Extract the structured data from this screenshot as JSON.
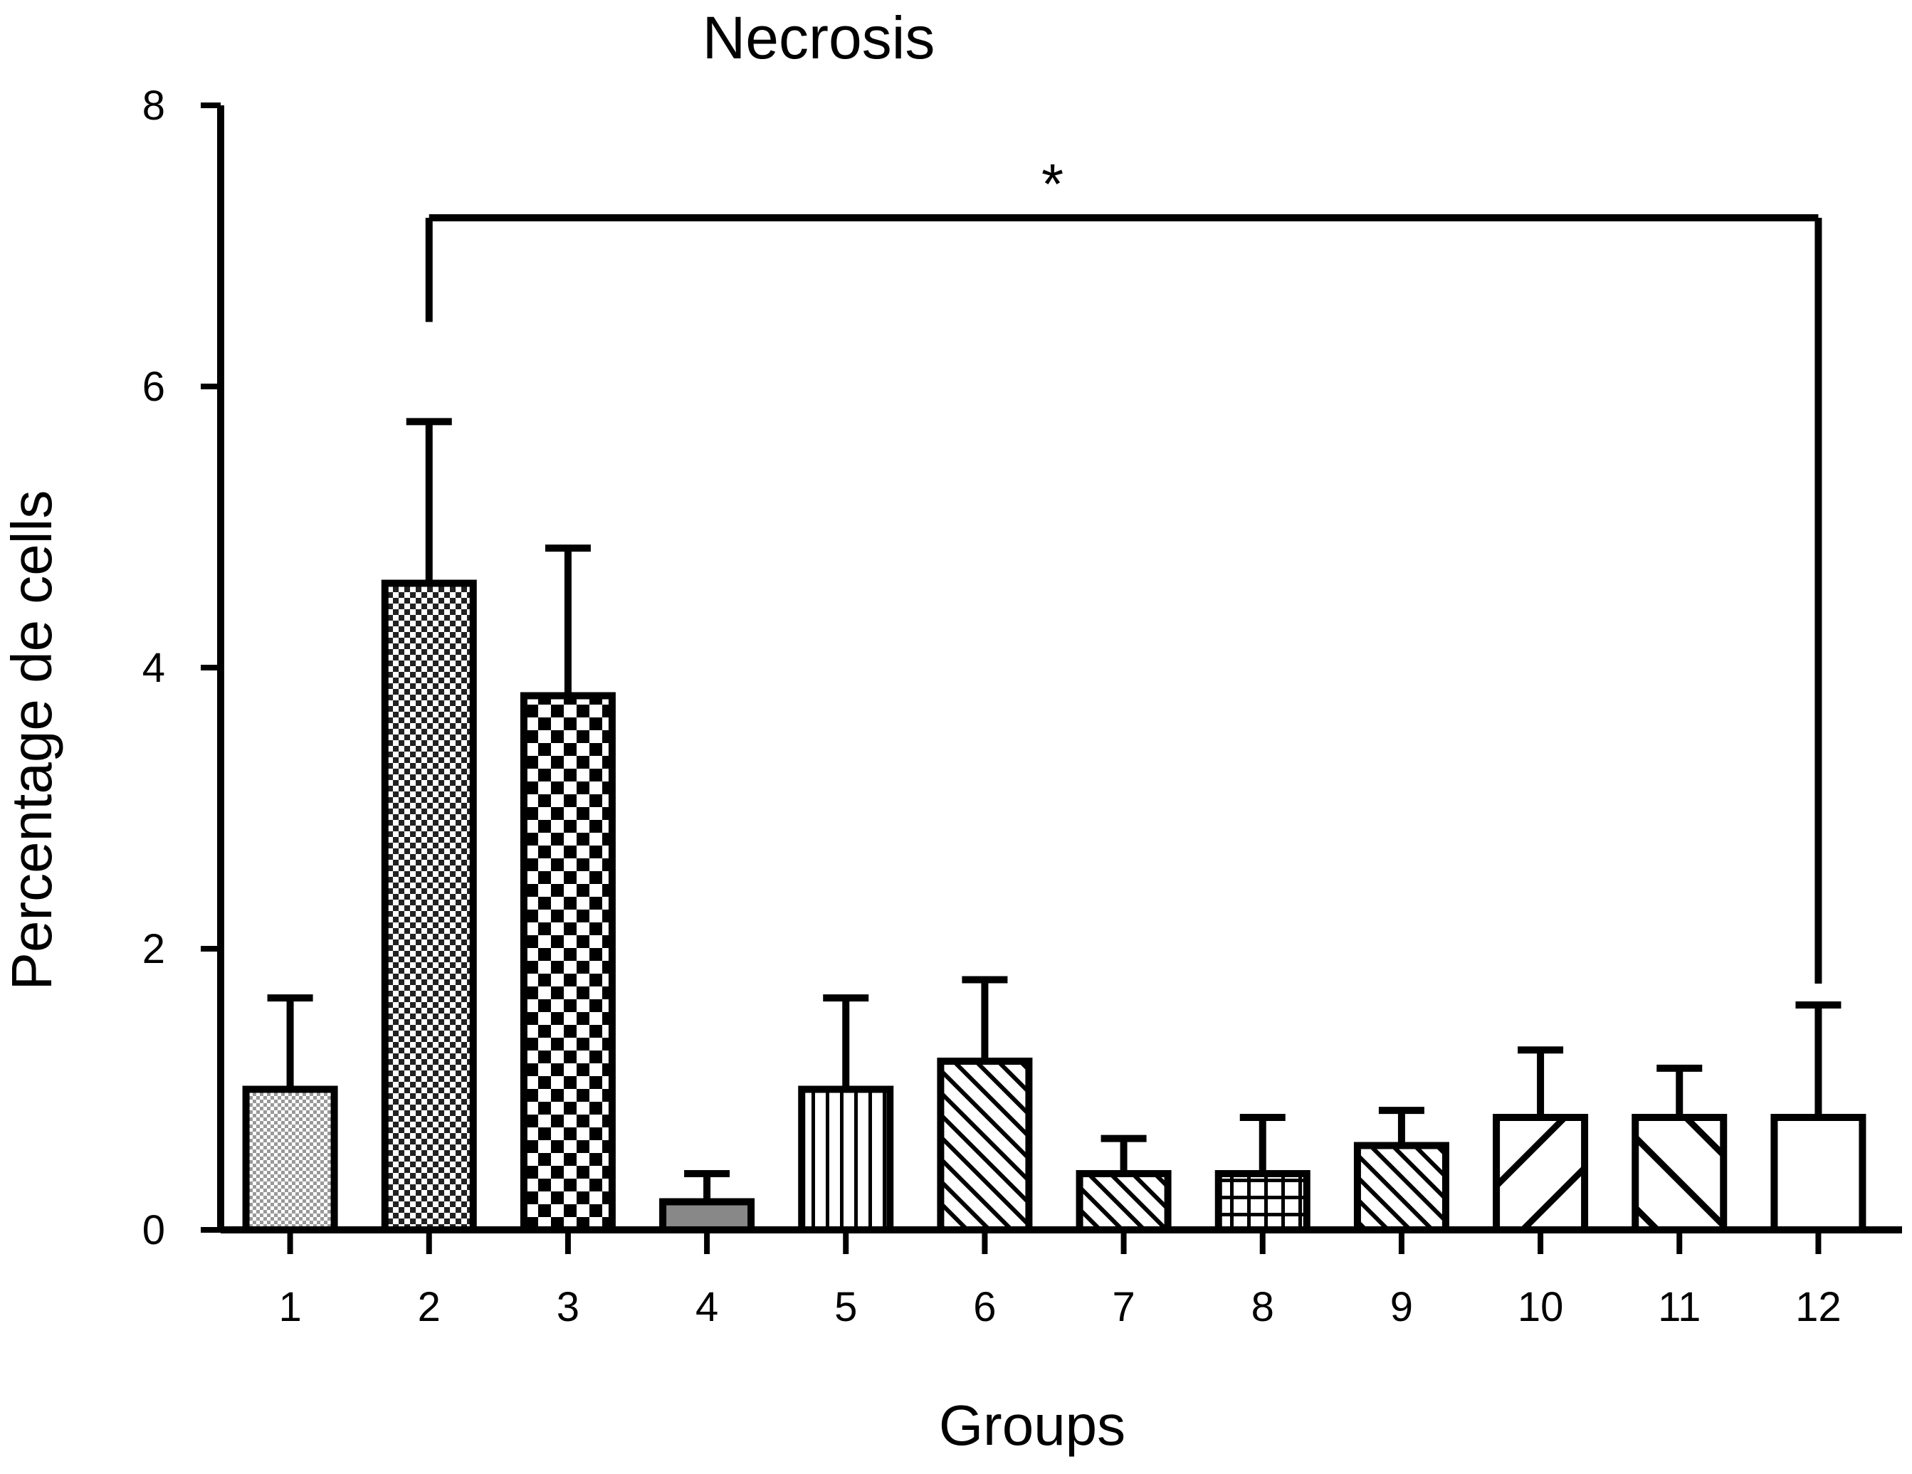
{
  "chart_data": {
    "type": "bar",
    "title": "Necrosis",
    "xlabel": "Groups",
    "ylabel": "Percentage de cells",
    "categories": [
      "1",
      "2",
      "3",
      "4",
      "5",
      "6",
      "7",
      "8",
      "9",
      "10",
      "11",
      "12"
    ],
    "values": [
      1.0,
      4.6,
      3.8,
      0.2,
      1.0,
      1.2,
      0.4,
      0.4,
      0.6,
      0.8,
      0.8,
      0.8
    ],
    "error_upper": [
      1.65,
      5.75,
      4.85,
      0.4,
      1.65,
      1.78,
      0.65,
      0.8,
      0.85,
      1.28,
      1.15,
      1.6
    ],
    "patterns": [
      "fine-dots",
      "dense-checker",
      "checker",
      "solid-gray",
      "vertical-lines",
      "diagonal-lines",
      "diagonal-lines",
      "grid",
      "diagonal-lines",
      "wide-backslash",
      "wide-slash",
      "plain"
    ],
    "ylim": [
      0,
      8
    ],
    "yticks": [
      "0",
      "2",
      "4",
      "6",
      "8"
    ],
    "grid": false,
    "significance": {
      "from": "2",
      "to": "12",
      "label": "*",
      "level": 7.2
    },
    "colors": {
      "stroke": "#000000",
      "background": "#ffffff"
    }
  }
}
